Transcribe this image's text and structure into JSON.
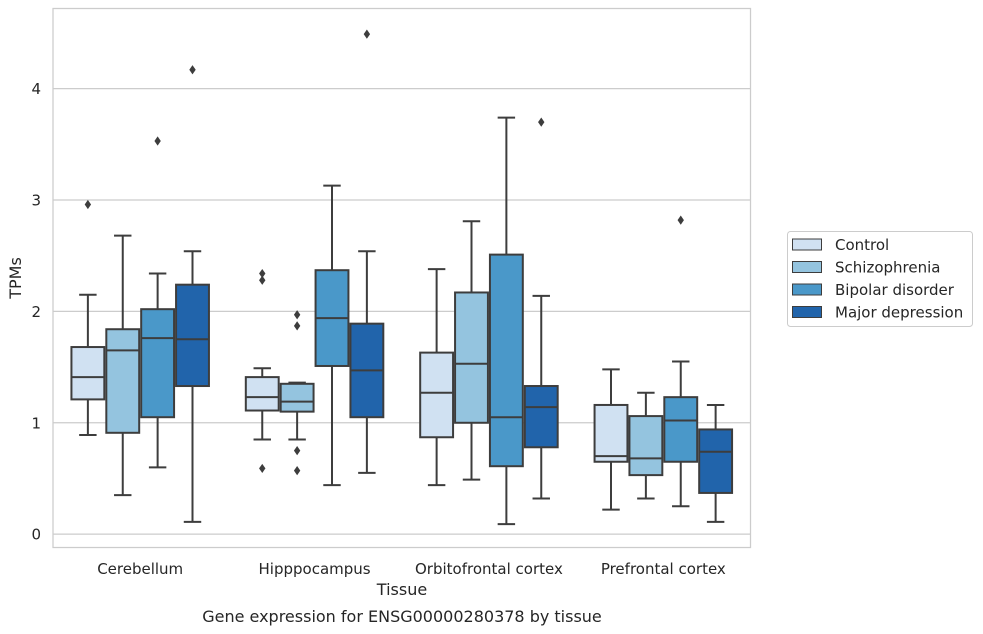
{
  "chart_data": {
    "type": "box",
    "xlabel": "Tissue",
    "ylabel": "TPMs",
    "caption": "Gene expression for ENSG00000280378 by tissue",
    "ylim": [
      -0.12,
      4.72
    ],
    "yticks": [
      0,
      1,
      2,
      3,
      4
    ],
    "grid": "horizontal",
    "legend_position": "right",
    "categories": [
      "Cerebellum",
      "Hipppocampus",
      "Orbitofrontal cortex",
      "Prefrontal cortex"
    ],
    "series": [
      {
        "name": "Control",
        "color": "#d0e1f2",
        "boxes": [
          {
            "whislo": 0.89,
            "q1": 1.21,
            "med": 1.41,
            "q3": 1.68,
            "whishi": 2.15,
            "fliers": [
              2.96
            ]
          },
          {
            "whislo": 0.85,
            "q1": 1.11,
            "med": 1.23,
            "q3": 1.41,
            "whishi": 1.49,
            "fliers": [
              0.59,
              2.28,
              2.34
            ]
          },
          {
            "whislo": 0.44,
            "q1": 0.87,
            "med": 1.27,
            "q3": 1.63,
            "whishi": 2.38,
            "fliers": []
          },
          {
            "whislo": 0.22,
            "q1": 0.65,
            "med": 0.7,
            "q3": 1.16,
            "whishi": 1.48,
            "fliers": []
          }
        ]
      },
      {
        "name": "Schizophrenia",
        "color": "#94c4df",
        "boxes": [
          {
            "whislo": 0.35,
            "q1": 0.91,
            "med": 1.65,
            "q3": 1.84,
            "whishi": 2.68,
            "fliers": []
          },
          {
            "whislo": 0.85,
            "q1": 1.1,
            "med": 1.19,
            "q3": 1.35,
            "whishi": 1.36,
            "fliers": [
              0.57,
              0.75,
              1.87,
              1.97
            ]
          },
          {
            "whislo": 0.49,
            "q1": 1.0,
            "med": 1.53,
            "q3": 2.17,
            "whishi": 2.81,
            "fliers": []
          },
          {
            "whislo": 0.32,
            "q1": 0.53,
            "med": 0.68,
            "q3": 1.06,
            "whishi": 1.27,
            "fliers": []
          }
        ]
      },
      {
        "name": "Bipolar disorder",
        "color": "#4a98c9",
        "boxes": [
          {
            "whislo": 0.6,
            "q1": 1.05,
            "med": 1.76,
            "q3": 2.02,
            "whishi": 2.34,
            "fliers": [
              3.53
            ]
          },
          {
            "whislo": 0.44,
            "q1": 1.51,
            "med": 1.94,
            "q3": 2.37,
            "whishi": 3.13,
            "fliers": []
          },
          {
            "whislo": 0.09,
            "q1": 0.61,
            "med": 1.05,
            "q3": 2.51,
            "whishi": 3.74,
            "fliers": []
          },
          {
            "whislo": 0.25,
            "q1": 0.65,
            "med": 1.02,
            "q3": 1.23,
            "whishi": 1.55,
            "fliers": [
              2.82
            ]
          }
        ]
      },
      {
        "name": "Major depression",
        "color": "#2164ab",
        "boxes": [
          {
            "whislo": 0.11,
            "q1": 1.33,
            "med": 1.75,
            "q3": 2.24,
            "whishi": 2.54,
            "fliers": [
              4.17
            ]
          },
          {
            "whislo": 0.55,
            "q1": 1.05,
            "med": 1.47,
            "q3": 1.89,
            "whishi": 2.54,
            "fliers": [
              4.49
            ]
          },
          {
            "whislo": 0.32,
            "q1": 0.78,
            "med": 1.14,
            "q3": 1.33,
            "whishi": 2.14,
            "fliers": [
              3.7
            ]
          },
          {
            "whislo": 0.11,
            "q1": 0.37,
            "med": 0.74,
            "q3": 0.94,
            "whishi": 1.16,
            "fliers": []
          }
        ]
      }
    ]
  }
}
